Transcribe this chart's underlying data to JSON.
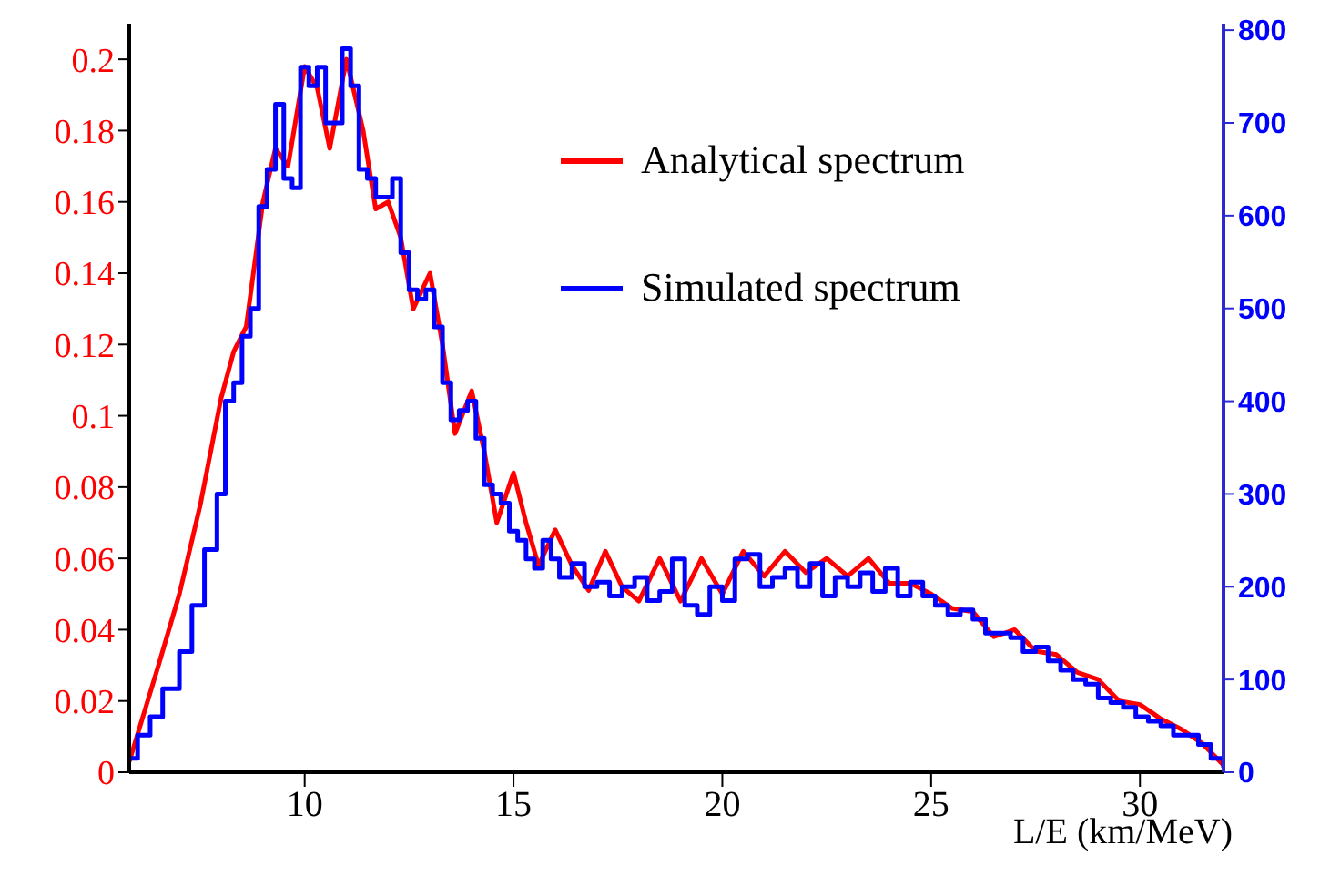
{
  "chart_data": {
    "type": "line",
    "xlabel": "L/E (km/MeV)",
    "xlim": [
      5.8,
      32
    ],
    "xticks": [
      10,
      15,
      20,
      25,
      30
    ],
    "ylim": [
      0,
      0.21
    ],
    "yticks": [
      0,
      0.02,
      0.04,
      0.06,
      0.08,
      0.1,
      0.12,
      0.14,
      0.16,
      0.18,
      0.2
    ],
    "y2lim": [
      0,
      807
    ],
    "y2ticks": [
      0,
      100,
      200,
      300,
      400,
      500,
      600,
      700,
      800
    ],
    "grid": false,
    "legend": "top right",
    "marker": "none",
    "series": [
      {
        "name": "Analytical spectrum",
        "color": "#ff0000",
        "type": "line",
        "x": [
          5.8,
          6.5,
          7,
          7.5,
          8,
          8.3,
          8.6,
          9,
          9.3,
          9.6,
          10,
          10.3,
          10.6,
          11,
          11.4,
          11.7,
          12,
          12.3,
          12.6,
          13,
          13.3,
          13.6,
          14,
          14.3,
          14.6,
          15,
          15.3,
          15.6,
          16,
          16.4,
          16.8,
          17.2,
          17.6,
          18,
          18.5,
          19,
          19.5,
          20,
          20.5,
          21,
          21.5,
          22,
          22.5,
          23,
          23.5,
          24,
          24.5,
          25,
          25.5,
          26,
          26.5,
          27,
          27.5,
          28,
          28.5,
          29,
          29.5,
          30,
          30.5,
          31,
          31.5,
          32
        ],
        "values": [
          0.003,
          0.03,
          0.05,
          0.075,
          0.105,
          0.118,
          0.125,
          0.16,
          0.175,
          0.17,
          0.198,
          0.192,
          0.175,
          0.2,
          0.18,
          0.158,
          0.16,
          0.15,
          0.13,
          0.14,
          0.12,
          0.095,
          0.107,
          0.09,
          0.07,
          0.084,
          0.07,
          0.058,
          0.068,
          0.058,
          0.051,
          0.062,
          0.052,
          0.048,
          0.06,
          0.048,
          0.06,
          0.05,
          0.062,
          0.055,
          0.062,
          0.056,
          0.06,
          0.055,
          0.06,
          0.053,
          0.053,
          0.05,
          0.046,
          0.045,
          0.038,
          0.04,
          0.034,
          0.033,
          0.028,
          0.026,
          0.02,
          0.019,
          0.015,
          0.012,
          0.008,
          0.002
        ]
      },
      {
        "name": "Simulated spectrum",
        "color": "#0000ff",
        "type": "step",
        "axis": "y2",
        "x": [
          5.8,
          6.0,
          6.3,
          6.6,
          7.0,
          7.3,
          7.6,
          7.9,
          8.1,
          8.3,
          8.5,
          8.7,
          8.9,
          9.1,
          9.3,
          9.5,
          9.7,
          9.9,
          10.1,
          10.3,
          10.5,
          10.7,
          10.9,
          11.1,
          11.3,
          11.5,
          11.7,
          11.9,
          12.1,
          12.3,
          12.5,
          12.7,
          12.9,
          13.1,
          13.3,
          13.5,
          13.7,
          13.9,
          14.1,
          14.3,
          14.5,
          14.7,
          14.9,
          15.1,
          15.3,
          15.5,
          15.7,
          15.9,
          16.1,
          16.4,
          16.7,
          17.0,
          17.3,
          17.6,
          17.9,
          18.2,
          18.5,
          18.8,
          19.1,
          19.4,
          19.7,
          20.0,
          20.3,
          20.6,
          20.9,
          21.2,
          21.5,
          21.8,
          22.1,
          22.4,
          22.7,
          23.0,
          23.3,
          23.6,
          23.9,
          24.2,
          24.5,
          24.8,
          25.1,
          25.4,
          25.7,
          26.0,
          26.3,
          26.6,
          26.9,
          27.2,
          27.5,
          27.8,
          28.1,
          28.4,
          28.7,
          29.0,
          29.3,
          29.6,
          29.9,
          30.2,
          30.5,
          30.8,
          31.1,
          31.4,
          31.7,
          32
        ],
        "values": [
          15,
          40,
          60,
          90,
          130,
          180,
          240,
          300,
          400,
          420,
          470,
          500,
          610,
          650,
          720,
          640,
          630,
          760,
          740,
          760,
          700,
          700,
          780,
          740,
          650,
          640,
          620,
          620,
          640,
          560,
          520,
          510,
          520,
          480,
          420,
          380,
          390,
          400,
          360,
          310,
          300,
          290,
          260,
          250,
          230,
          220,
          250,
          230,
          210,
          225,
          200,
          205,
          190,
          200,
          210,
          185,
          195,
          230,
          180,
          170,
          200,
          185,
          230,
          235,
          200,
          210,
          220,
          200,
          225,
          190,
          210,
          200,
          215,
          195,
          220,
          190,
          205,
          190,
          180,
          170,
          175,
          165,
          150,
          150,
          145,
          130,
          135,
          120,
          110,
          100,
          95,
          80,
          75,
          70,
          60,
          55,
          50,
          40,
          40,
          30,
          15,
          5
        ]
      }
    ]
  }
}
